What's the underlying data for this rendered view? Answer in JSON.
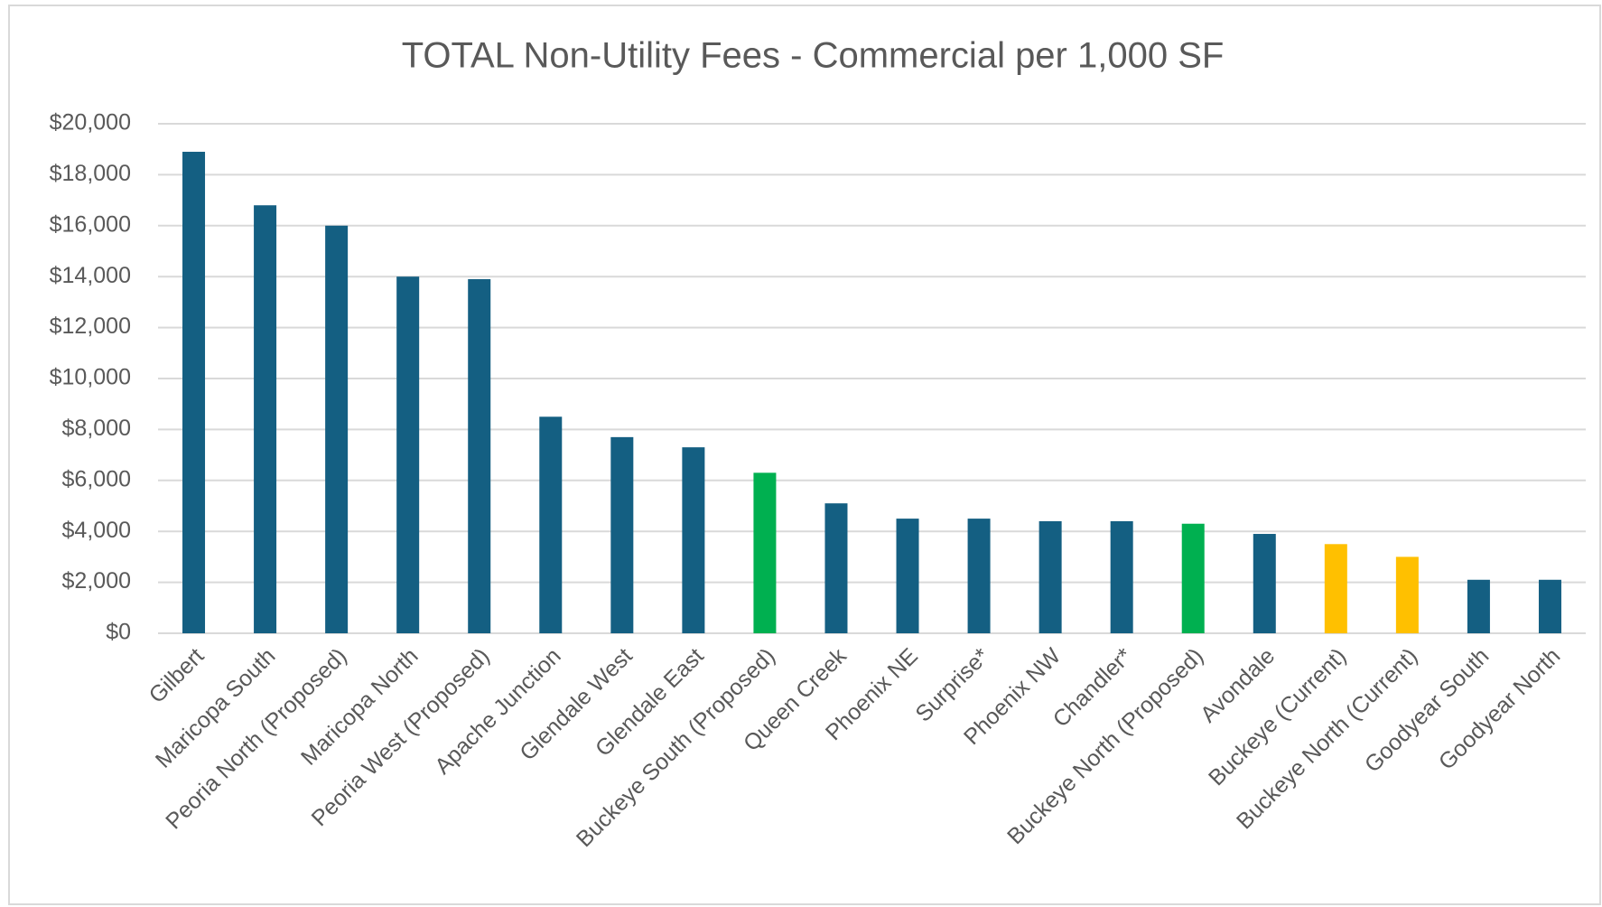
{
  "chart_data": {
    "type": "bar",
    "title": "TOTAL Non-Utility Fees - Commercial per 1,000 SF",
    "categories": [
      "Gilbert",
      "Maricopa South",
      "Peoria North (Proposed)",
      "Maricopa North",
      "Peoria West (Proposed)",
      "Apache Junction",
      "Glendale West",
      "Glendale East",
      "Buckeye South (Proposed)",
      "Queen Creek",
      "Phoenix NE",
      "Surprise*",
      "Phoenix NW",
      "Chandler*",
      "Buckeye North (Proposed)",
      "Avondale",
      "Buckeye (Current)",
      "Buckeye North (Current)",
      "Goodyear South",
      "Goodyear North"
    ],
    "values": [
      18900,
      16800,
      16000,
      14000,
      13900,
      8500,
      7700,
      7300,
      6300,
      5100,
      4500,
      4500,
      4400,
      4400,
      4300,
      3900,
      3500,
      3000,
      2100,
      2100
    ],
    "colors": [
      "#145f82",
      "#145f82",
      "#145f82",
      "#145f82",
      "#145f82",
      "#145f82",
      "#145f82",
      "#145f82",
      "#00b050",
      "#145f82",
      "#145f82",
      "#145f82",
      "#145f82",
      "#145f82",
      "#00b050",
      "#145f82",
      "#ffc000",
      "#ffc000",
      "#145f82",
      "#145f82"
    ],
    "ylim": [
      0,
      20000
    ],
    "yticks": [
      {
        "value": 0,
        "label": "$0"
      },
      {
        "value": 2000,
        "label": "$2,000"
      },
      {
        "value": 4000,
        "label": "$4,000"
      },
      {
        "value": 6000,
        "label": "$6,000"
      },
      {
        "value": 8000,
        "label": "$8,000"
      },
      {
        "value": 10000,
        "label": "$10,000"
      },
      {
        "value": 12000,
        "label": "$12,000"
      },
      {
        "value": 14000,
        "label": "$14,000"
      },
      {
        "value": 16000,
        "label": "$16,000"
      },
      {
        "value": 18000,
        "label": "$18,000"
      },
      {
        "value": 20000,
        "label": "$20,000"
      }
    ],
    "grid": true
  }
}
